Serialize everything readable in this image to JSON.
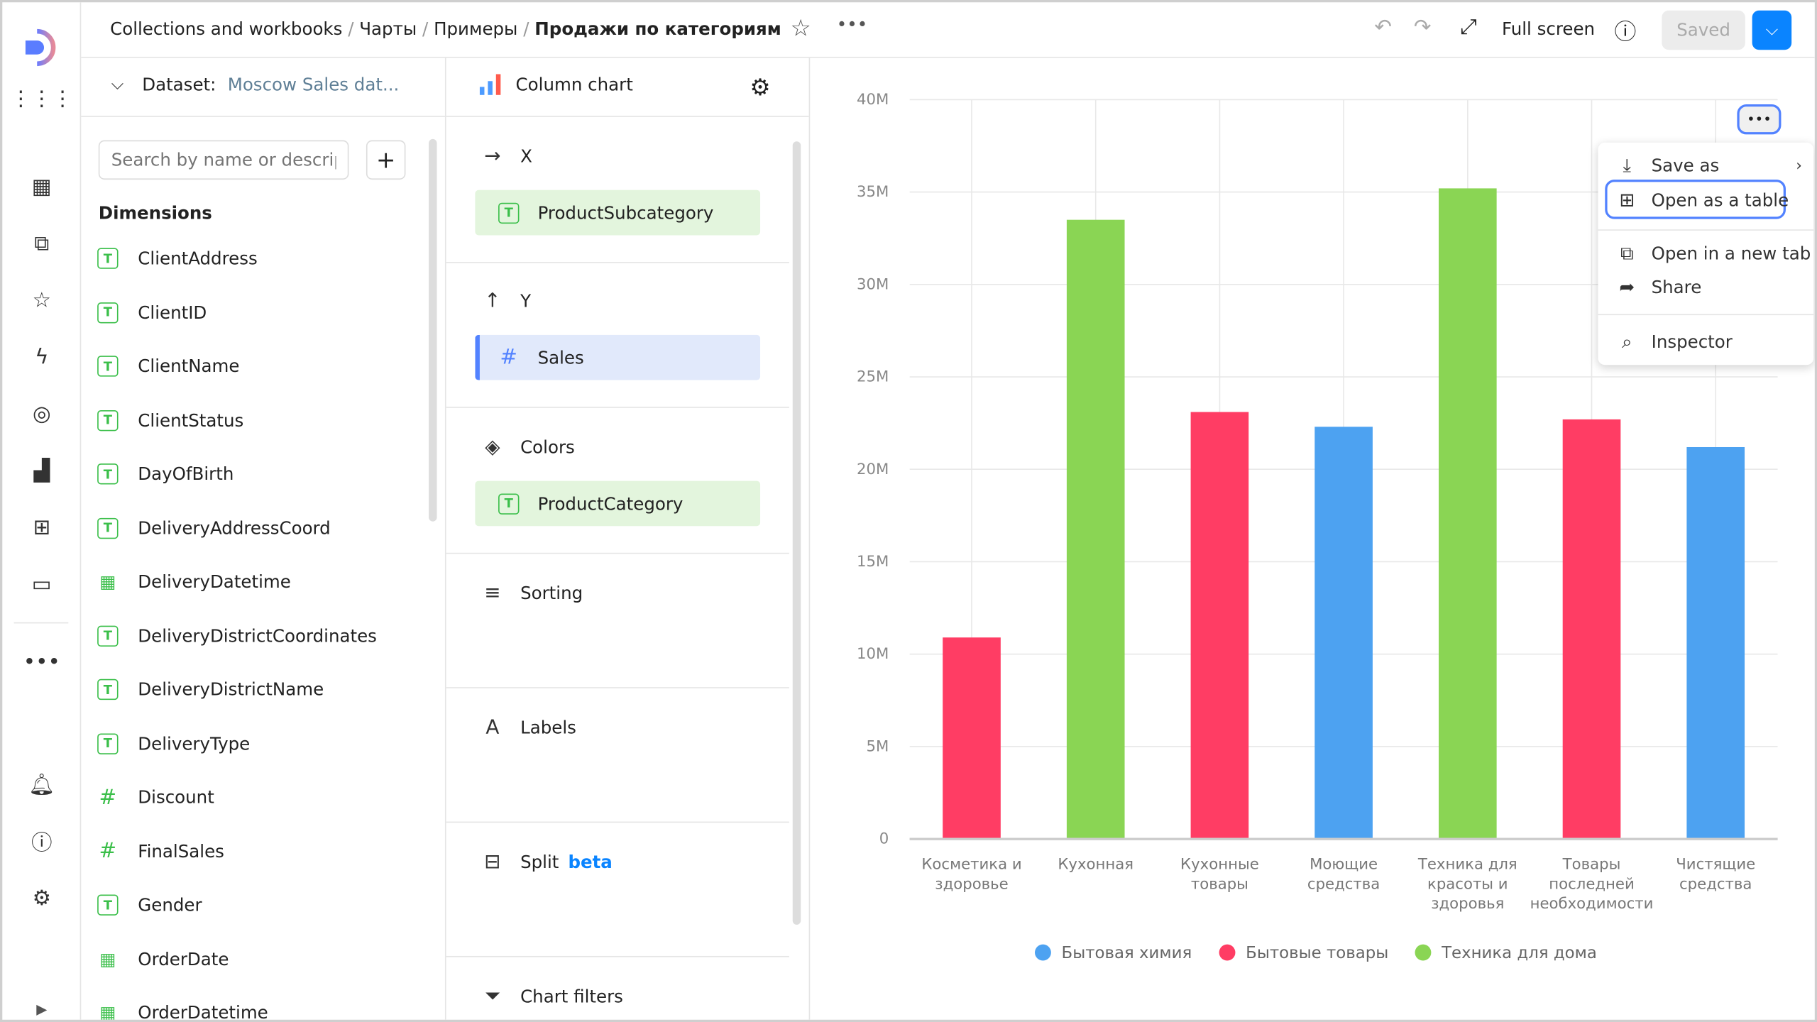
{
  "header": {
    "breadcrumbs": [
      "Collections and workbooks",
      "Чарты",
      "Примеры"
    ],
    "current": "Продажи по категориям",
    "fullscreen": "Full screen",
    "saved": "Saved"
  },
  "dataset": {
    "label": "Dataset:",
    "name": "Moscow Sales dat...",
    "search_placeholder": "Search by name or description",
    "dimensions_title": "Dimensions",
    "items": [
      {
        "name": "ClientAddress",
        "type": "text"
      },
      {
        "name": "ClientID",
        "type": "text"
      },
      {
        "name": "ClientName",
        "type": "text"
      },
      {
        "name": "ClientStatus",
        "type": "text"
      },
      {
        "name": "DayOfBirth",
        "type": "text"
      },
      {
        "name": "DeliveryAddressCoord",
        "type": "text"
      },
      {
        "name": "DeliveryDatetime",
        "type": "date"
      },
      {
        "name": "DeliveryDistrictCoordinates",
        "type": "text"
      },
      {
        "name": "DeliveryDistrictName",
        "type": "text"
      },
      {
        "name": "DeliveryType",
        "type": "text"
      },
      {
        "name": "Discount",
        "type": "number"
      },
      {
        "name": "FinalSales",
        "type": "number"
      },
      {
        "name": "Gender",
        "type": "text"
      },
      {
        "name": "OrderDate",
        "type": "date"
      },
      {
        "name": "OrderDatetime",
        "type": "date"
      }
    ]
  },
  "config": {
    "chart_type": "Column chart",
    "x_label": "X",
    "x_field": "ProductSubcategory",
    "y_label": "Y",
    "y_field": "Sales",
    "colors_label": "Colors",
    "colors_field": "ProductCategory",
    "sorting": "Sorting",
    "labels": "Labels",
    "split": "Split",
    "split_badge": "beta",
    "filters": "Chart filters"
  },
  "menu": {
    "items": [
      "Save as",
      "Open as a table",
      "Open in a new tab",
      "Share",
      "Inspector"
    ]
  },
  "chart_data": {
    "type": "bar",
    "title": "",
    "xlabel": "",
    "ylabel": "",
    "ylim": [
      0,
      40000000
    ],
    "yticks": [
      "0",
      "5M",
      "10M",
      "15M",
      "20M",
      "25M",
      "30M",
      "35M",
      "40M"
    ],
    "categories": [
      [
        "Косметика и",
        "здоровье"
      ],
      [
        "Кухонная"
      ],
      [
        "Кухонные",
        "товары"
      ],
      [
        "Моющие",
        "средства"
      ],
      [
        "Техника для",
        "красоты и",
        "здоровья"
      ],
      [
        "Товары",
        "последней",
        "необходимости"
      ],
      [
        "Чистящие",
        "средства"
      ]
    ],
    "values": [
      10900000,
      33500000,
      23100000,
      22300000,
      35200000,
      22700000,
      21200000
    ],
    "series_of_bar": [
      1,
      2,
      1,
      0,
      2,
      1,
      0
    ],
    "legend": [
      {
        "name": "Бытовая химия",
        "color": "#4da2f1"
      },
      {
        "name": "Бытовые товары",
        "color": "#ff3d64"
      },
      {
        "name": "Техника для дома",
        "color": "#8ad554"
      }
    ],
    "legend_position": "bottom",
    "grid": true
  }
}
